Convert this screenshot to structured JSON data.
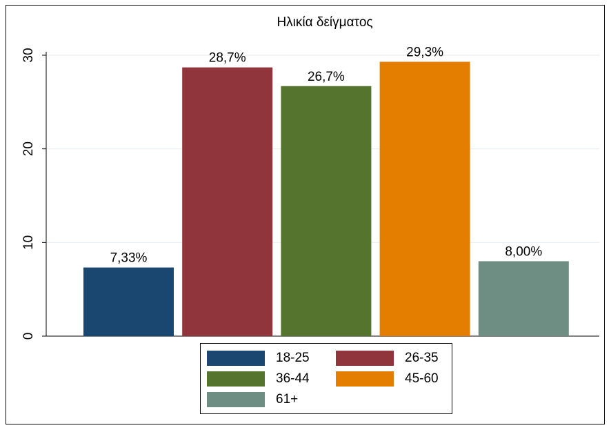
{
  "chart_data": {
    "type": "bar",
    "title": "Ηλικία δείγματος",
    "xlabel": "",
    "ylabel": "",
    "ylim": [
      0,
      30
    ],
    "yticks": [
      0,
      10,
      20,
      30
    ],
    "grid": true,
    "legend_position": "bottom",
    "categories": [
      "18-25",
      "26-35",
      "36-44",
      "45-60",
      "61+"
    ],
    "values": [
      7.33,
      28.7,
      26.7,
      29.3,
      8.0
    ],
    "value_labels": [
      "7,33%",
      "28,7%",
      "26,7%",
      "29,3%",
      "8,00%"
    ],
    "colors": [
      "#1a476f",
      "#90353b",
      "#55752f",
      "#e37e00",
      "#6e8e84"
    ]
  }
}
